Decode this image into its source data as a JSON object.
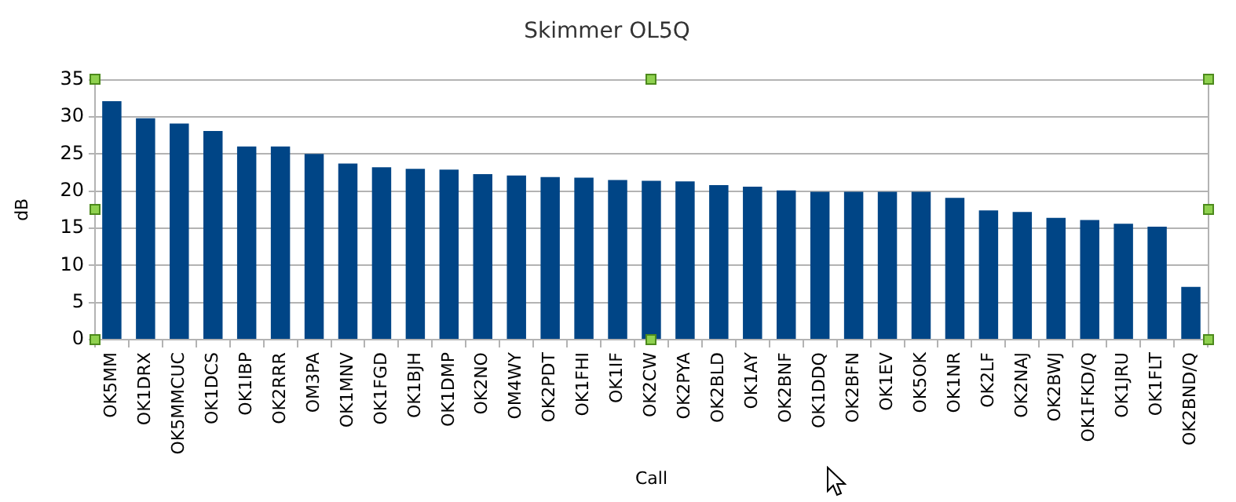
{
  "chart_data": {
    "type": "bar",
    "title": "Skimmer OL5Q",
    "xlabel": "Call",
    "ylabel": "dB",
    "categories": [
      "OK5MM",
      "OK1DRX",
      "OK5MMCUC",
      "OK1DCS",
      "OK1IBP",
      "OK2RRR",
      "OM3PA",
      "OK1MNV",
      "OK1FGD",
      "OK1BJH",
      "OK1DMP",
      "OK2NO",
      "OM4WY",
      "OK2PDT",
      "OK1FHI",
      "OK1IF",
      "OK2CW",
      "OK2PYA",
      "OK2BLD",
      "OK1AY",
      "OK2BNF",
      "OK1DDQ",
      "OK2BFN",
      "OK1EV",
      "OK5OK",
      "OK1NR",
      "OK2LF",
      "OK2NAJ",
      "OK2BWJ",
      "OK1FKD/Q",
      "OK1JRU",
      "OK1FLT",
      "OK2BND/Q"
    ],
    "values": [
      32.1,
      29.8,
      29.1,
      28.1,
      26.0,
      26.0,
      25.0,
      23.7,
      23.2,
      23.0,
      22.9,
      22.3,
      22.1,
      21.9,
      21.8,
      21.5,
      21.4,
      21.3,
      20.8,
      20.6,
      20.1,
      19.9,
      19.9,
      19.9,
      19.9,
      19.1,
      17.4,
      17.2,
      16.4,
      16.1,
      15.6,
      15.2,
      7.1
    ],
    "color": "#004586",
    "ylim": [
      0,
      35
    ],
    "yticks": [
      0,
      5,
      10,
      15,
      20,
      25,
      30,
      35
    ],
    "grid": "y",
    "legend": false
  }
}
